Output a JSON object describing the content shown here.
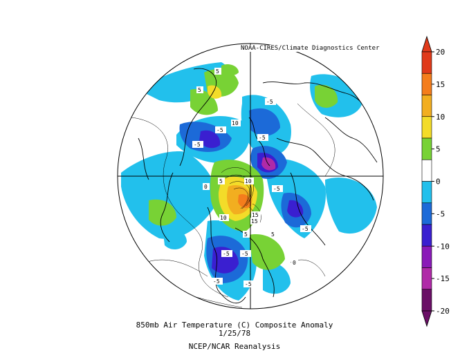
{
  "header": {
    "credit": "NOAA-CIRES/Climate Diagnostics Center"
  },
  "footer": {
    "title": "850mb Air Temperature (C) Composite Anomaly",
    "date": "1/25/78",
    "source": "NCEP/NCAR Reanalysis"
  },
  "colorbar": {
    "ticks": [
      "20",
      "15",
      "10",
      "5",
      "0",
      "-5",
      "-10",
      "-15",
      "-20"
    ],
    "colors": [
      "#e03a1a",
      "#f47d1c",
      "#f2ae20",
      "#f3dc29",
      "#78d235",
      "#ffffff",
      "#22c0ec",
      "#1c6ad8",
      "#3a1fd0",
      "#8a1ab8",
      "#b02aa8",
      "#6a0f66"
    ]
  },
  "contour_labels": [
    "-5",
    "5",
    "5",
    "-5",
    "-5",
    "10",
    "-5",
    "-5",
    "-5",
    "0",
    "5",
    "10",
    "15",
    "10",
    "15",
    "5",
    "-5",
    "5",
    "-5",
    "-5",
    "0",
    "-5"
  ]
}
